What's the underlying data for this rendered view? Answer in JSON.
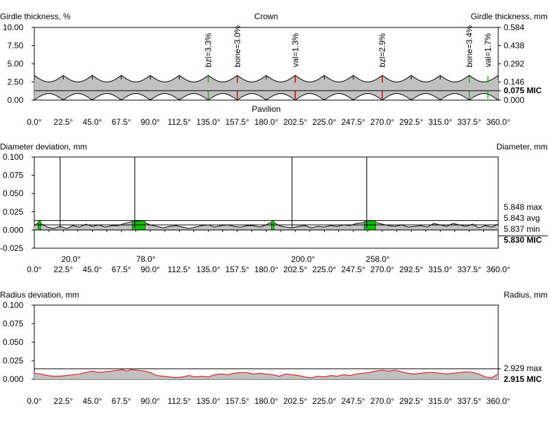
{
  "chart_data": [
    {
      "type": "area",
      "id": "girdle",
      "title": "Crown",
      "bottom_label": "Pavilion",
      "ylabel_left": "Girdle thickness, %",
      "ylabel_right": "Girdle thickness, mm",
      "xlim": [
        0,
        360
      ],
      "ylim": [
        0,
        10
      ],
      "x_ticks": [
        "0.0°",
        "22.5°",
        "45.0°",
        "67.5°",
        "90.0°",
        "112.5°",
        "135.0°",
        "157.5°",
        "180.0°",
        "202.5°",
        "225.0°",
        "247.5°",
        "270.0°",
        "292.5°",
        "315.0°",
        "337.5°",
        "360.0°"
      ],
      "y_ticks_left": [
        {
          "v": 10.0,
          "label": "10.00"
        },
        {
          "v": 7.5,
          "label": "7.50"
        },
        {
          "v": 5.0,
          "label": "5.00"
        },
        {
          "v": 2.5,
          "label": "2.50"
        },
        {
          "v": 0.0,
          "label": "0.00"
        }
      ],
      "y_ticks_right": [
        {
          "v": 10.0,
          "label": "0.584"
        },
        {
          "v": 7.5,
          "label": "0.438"
        },
        {
          "v": 5.0,
          "label": "0.292"
        },
        {
          "v": 2.5,
          "label": "0.146"
        },
        {
          "v": 0.0,
          "label": "0.000"
        }
      ],
      "mic": {
        "value": 1.3,
        "label": "0.075 MIC"
      },
      "band": {
        "top_valley": 2.5,
        "top_peak": 3.4,
        "bottom_valley": 0.9,
        "bottom_peak": 0.0,
        "scallops": 16
      },
      "markers": [
        {
          "x": 135.0,
          "label": "bzl=3.3%",
          "color": "#00c000"
        },
        {
          "x": 157.5,
          "label": "bone=3.0%",
          "color": "#e00000"
        },
        {
          "x": 202.5,
          "label": "val=1.3%",
          "color": "#e00000"
        },
        {
          "x": 270.0,
          "label": "bzl=2.9%",
          "color": "#e00000"
        },
        {
          "x": 337.5,
          "label": "bone=3.4%",
          "color": "#00c000"
        },
        {
          "x": 352.0,
          "label": "val=1.7%",
          "color": "#00c000"
        }
      ],
      "colors": {
        "fill": "#c0c0c0",
        "line": "#000000"
      }
    },
    {
      "type": "area",
      "id": "diameter",
      "ylabel_left": "Diameter deviation, mm",
      "ylabel_right": "Diameter, mm",
      "xlim": [
        0,
        360
      ],
      "ylim": [
        -0.025,
        0.1
      ],
      "x_ticks": [
        "0.0°",
        "22.5°",
        "45.0°",
        "67.5°",
        "90.0°",
        "112.5°",
        "135.0°",
        "157.5°",
        "180.0°",
        "202.5°",
        "225.0°",
        "247.5°",
        "270.0°",
        "292.5°",
        "315.0°",
        "337.5°",
        "360.0°"
      ],
      "y_ticks_left": [
        {
          "v": 0.1,
          "label": "0.100"
        },
        {
          "v": 0.075,
          "label": "0.075"
        },
        {
          "v": 0.05,
          "label": "0.050"
        },
        {
          "v": 0.025,
          "label": "0.025"
        },
        {
          "v": 0.0,
          "label": "0.000"
        },
        {
          "v": -0.025,
          "label": "-0.025"
        }
      ],
      "right_values": [
        {
          "v": 0.018,
          "label": "5.848 max",
          "bold": false
        },
        {
          "v": 0.013,
          "label": "5.843 avg",
          "bold": false
        },
        {
          "v": 0.007,
          "label": "5.837 min",
          "bold": false
        },
        {
          "v": 0.0,
          "label": "5.830 MIC",
          "bold": true
        }
      ],
      "ref_lines": [
        0.013,
        0.007
      ],
      "vlines": [
        20.0,
        78.0,
        200.0,
        258.0
      ],
      "angle_labels": [
        {
          "x": 20.0,
          "label": "20.0°",
          "color": "#e00000"
        },
        {
          "x": 78.0,
          "label": "78.0°",
          "color": "#00c000"
        },
        {
          "x": 200.0,
          "label": "200.0°",
          "color": "#e00000"
        },
        {
          "x": 258.0,
          "label": "258.0°",
          "color": "#00c000"
        }
      ],
      "green_blocks": [
        {
          "x0": 3,
          "x1": 5
        },
        {
          "x0": 76,
          "x1": 86
        },
        {
          "x0": 184,
          "x1": 186
        },
        {
          "x0": 256,
          "x1": 265
        }
      ],
      "profile": {
        "x": [
          0,
          3,
          6,
          10,
          15,
          20,
          25,
          30,
          35,
          40,
          45,
          50,
          55,
          60,
          65,
          70,
          75,
          78,
          82,
          86,
          90,
          95,
          100,
          105,
          110,
          115,
          120,
          125,
          130,
          135,
          140,
          145,
          150,
          155,
          160,
          165,
          170,
          175,
          180,
          183,
          186,
          190,
          195,
          200,
          205,
          210,
          215,
          220,
          225,
          230,
          235,
          240,
          245,
          250,
          255,
          258,
          262,
          266,
          270,
          275,
          280,
          285,
          290,
          295,
          300,
          305,
          310,
          315,
          320,
          325,
          330,
          335,
          340,
          345,
          350,
          355,
          360
        ],
        "y": [
          0.006,
          0.01,
          0.008,
          0.004,
          0.002,
          0.005,
          0.002,
          0.006,
          0.004,
          0.008,
          0.005,
          0.007,
          0.004,
          0.006,
          0.006,
          0.009,
          0.011,
          0.012,
          0.012,
          0.01,
          0.007,
          0.005,
          0.003,
          0.005,
          0.006,
          0.004,
          0.002,
          0.004,
          0.006,
          0.007,
          0.004,
          0.006,
          0.007,
          0.005,
          0.004,
          0.006,
          0.006,
          0.004,
          0.007,
          0.01,
          0.01,
          0.006,
          0.004,
          0.003,
          0.005,
          0.006,
          0.003,
          0.005,
          0.004,
          0.006,
          0.005,
          0.007,
          0.006,
          0.009,
          0.01,
          0.011,
          0.011,
          0.01,
          0.008,
          0.006,
          0.005,
          0.007,
          0.004,
          0.005,
          0.006,
          0.004,
          0.009,
          0.007,
          0.005,
          0.009,
          0.007,
          0.005,
          0.008,
          0.003,
          0.006,
          0.004,
          0.008
        ]
      },
      "colors": {
        "fill": "#c0c0c0",
        "line": "#000000",
        "highlight": "#00c000"
      }
    },
    {
      "type": "area",
      "id": "radius",
      "ylabel_left": "Radius deviation, mm",
      "ylabel_right": "Radius, mm",
      "xlim": [
        0,
        360
      ],
      "ylim": [
        0,
        0.1
      ],
      "x_ticks": [
        "0.0°",
        "22.5°",
        "45.0°",
        "67.5°",
        "90.0°",
        "112.5°",
        "135.0°",
        "157.5°",
        "180.0°",
        "202.5°",
        "225.0°",
        "247.5°",
        "270.0°",
        "292.5°",
        "315.0°",
        "337.5°",
        "360.0°"
      ],
      "y_ticks_left": [
        {
          "v": 0.1,
          "label": "0.100"
        },
        {
          "v": 0.075,
          "label": "0.075"
        },
        {
          "v": 0.05,
          "label": "0.050"
        },
        {
          "v": 0.025,
          "label": "0.025"
        },
        {
          "v": 0.0,
          "label": "0.000"
        }
      ],
      "right_values": [
        {
          "v": 0.014,
          "label": "2.929 max",
          "bold": false
        },
        {
          "v": 0.0,
          "label": "2.915 MIC",
          "bold": true
        }
      ],
      "ref_lines": [
        0.014
      ],
      "profile": {
        "x": [
          0,
          5,
          10,
          15,
          20,
          25,
          30,
          35,
          40,
          45,
          50,
          55,
          60,
          65,
          68,
          72,
          75,
          80,
          85,
          90,
          95,
          100,
          105,
          110,
          115,
          120,
          125,
          130,
          135,
          140,
          145,
          150,
          155,
          160,
          165,
          170,
          175,
          180,
          185,
          190,
          195,
          200,
          205,
          210,
          215,
          220,
          225,
          230,
          235,
          240,
          245,
          250,
          255,
          260,
          265,
          270,
          275,
          280,
          285,
          290,
          295,
          300,
          305,
          310,
          315,
          320,
          325,
          330,
          335,
          340,
          345,
          350,
          355,
          360
        ],
        "y": [
          0.008,
          0.007,
          0.005,
          0.004,
          0.004,
          0.005,
          0.006,
          0.007,
          0.009,
          0.011,
          0.009,
          0.01,
          0.011,
          0.012,
          0.013,
          0.011,
          0.013,
          0.012,
          0.011,
          0.009,
          0.005,
          0.004,
          0.003,
          0.002,
          0.003,
          0.005,
          0.003,
          0.004,
          0.003,
          0.006,
          0.007,
          0.006,
          0.008,
          0.009,
          0.009,
          0.007,
          0.008,
          0.007,
          0.006,
          0.004,
          0.007,
          0.006,
          0.005,
          0.003,
          0.002,
          0.004,
          0.003,
          0.005,
          0.004,
          0.006,
          0.005,
          0.007,
          0.008,
          0.009,
          0.011,
          0.012,
          0.011,
          0.012,
          0.01,
          0.008,
          0.007,
          0.008,
          0.009,
          0.009,
          0.008,
          0.007,
          0.008,
          0.009,
          0.01,
          0.009,
          0.007,
          0.003,
          0.002,
          0.007
        ]
      },
      "colors": {
        "fill": "#c0c0c0",
        "line": "#e00000"
      }
    }
  ]
}
